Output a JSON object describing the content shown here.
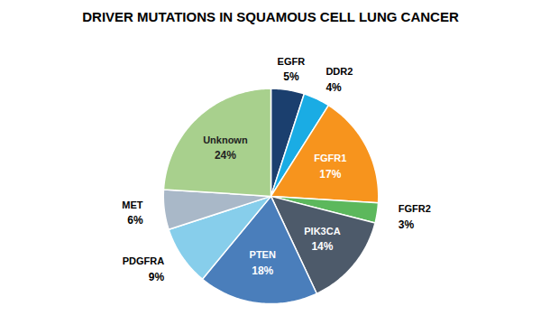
{
  "chart_data": {
    "type": "pie",
    "title": "DRIVER MUTATIONS IN SQUAMOUS CELL LUNG CANCER",
    "categories": [
      "EGFR",
      "DDR2",
      "FGFR1",
      "FGFR2",
      "PIK3CA",
      "PTEN",
      "PDGFRA",
      "MET",
      "Unknown"
    ],
    "values": [
      5,
      4,
      17,
      3,
      14,
      18,
      9,
      6,
      24
    ],
    "value_labels": [
      "5%",
      "4%",
      "17%",
      "3%",
      "14%",
      "18%",
      "9%",
      "6%",
      "24%"
    ],
    "colors": [
      "#1B3F6E",
      "#1AACE4",
      "#F7941D",
      "#5CB85C",
      "#4D5A6A",
      "#4A7EBB",
      "#87CEEB",
      "#A9B8C8",
      "#A8D08D"
    ],
    "data_labels": true
  }
}
